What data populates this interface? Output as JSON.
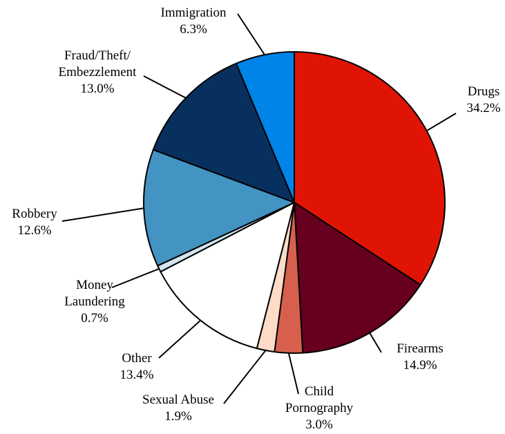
{
  "chart_data": {
    "type": "pie",
    "title": "",
    "slices": [
      {
        "name": "Drugs",
        "label_lines": [
          "Drugs"
        ],
        "value": 34.2,
        "value_label": "34.2%",
        "color": "#E01405"
      },
      {
        "name": "Firearms",
        "label_lines": [
          "Firearms"
        ],
        "value": 14.9,
        "value_label": "14.9%",
        "color": "#67001F"
      },
      {
        "name": "Child Pornography",
        "label_lines": [
          "Child",
          "Pornography"
        ],
        "value": 3.0,
        "value_label": "3.0%",
        "color": "#D6604D"
      },
      {
        "name": "Sexual Abuse",
        "label_lines": [
          "Sexual Abuse"
        ],
        "value": 1.9,
        "value_label": "1.9%",
        "color": "#FDDBC7"
      },
      {
        "name": "Other",
        "label_lines": [
          "Other"
        ],
        "value": 13.4,
        "value_label": "13.4%",
        "color": "#FFFFFF"
      },
      {
        "name": "Money Laundering",
        "label_lines": [
          "Money",
          "Laundering"
        ],
        "value": 0.7,
        "value_label": "0.7%",
        "color": "#D1E5F0"
      },
      {
        "name": "Robbery",
        "label_lines": [
          "Robbery"
        ],
        "value": 12.6,
        "value_label": "12.6%",
        "color": "#4393C3"
      },
      {
        "name": "Fraud/Theft/Embezzlement",
        "label_lines": [
          "Fraud/Theft/",
          "Embezzlement"
        ],
        "value": 13.0,
        "value_label": "13.0%",
        "color": "#08305E"
      },
      {
        "name": "Immigration",
        "label_lines": [
          "Immigration"
        ],
        "value": 6.3,
        "value_label": "6.3%",
        "color": "#0084E8"
      }
    ],
    "start": "12 o'clock",
    "direction": "clockwise",
    "legend": "none"
  }
}
